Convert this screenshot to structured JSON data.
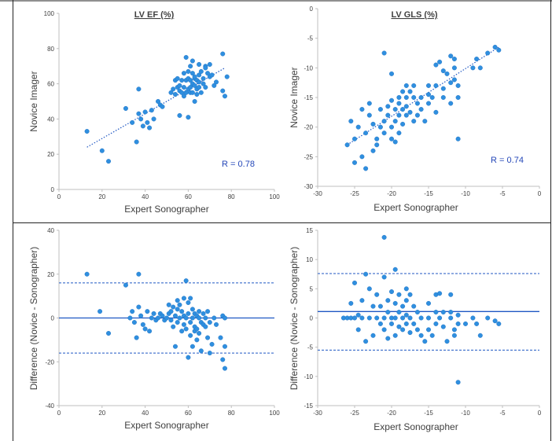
{
  "colors": {
    "point": "#2f8fdf",
    "point_edge": "#1f6fbf",
    "line": "#1f57c3",
    "r_label": "#2447b8",
    "axis": "#bfbfbf",
    "text": "#404040",
    "frame": "#222222"
  },
  "chart_data": [
    {
      "id": "ef-scatter",
      "type": "scatter",
      "title": "LV EF (%)",
      "xlabel": "Expert Sonographer",
      "ylabel": "Novice Imager",
      "xlim": [
        0,
        100
      ],
      "ylim": [
        0,
        100
      ],
      "xticks": [
        0,
        20,
        40,
        60,
        80,
        100
      ],
      "yticks": [
        0,
        20,
        40,
        60,
        80,
        100
      ],
      "annotation": "R = 0.78",
      "trendline": [
        [
          13,
          24
        ],
        [
          77,
          69
        ]
      ],
      "points": [
        [
          13,
          33
        ],
        [
          20,
          22
        ],
        [
          23,
          16
        ],
        [
          31,
          46
        ],
        [
          34,
          38
        ],
        [
          36,
          27
        ],
        [
          37,
          43
        ],
        [
          37,
          57
        ],
        [
          38,
          40
        ],
        [
          39,
          36
        ],
        [
          40,
          44
        ],
        [
          41,
          38
        ],
        [
          42,
          35
        ],
        [
          43,
          45
        ],
        [
          44,
          40
        ],
        [
          46,
          50
        ],
        [
          47,
          48
        ],
        [
          48,
          47
        ],
        [
          52,
          55
        ],
        [
          53,
          57
        ],
        [
          54,
          62
        ],
        [
          54,
          54
        ],
        [
          55,
          58
        ],
        [
          55,
          63
        ],
        [
          56,
          56
        ],
        [
          56,
          42
        ],
        [
          56,
          59
        ],
        [
          57,
          62
        ],
        [
          57,
          55
        ],
        [
          58,
          53
        ],
        [
          58,
          66
        ],
        [
          58,
          58
        ],
        [
          59,
          75
        ],
        [
          59,
          62
        ],
        [
          59,
          55
        ],
        [
          60,
          41
        ],
        [
          60,
          57
        ],
        [
          60,
          63
        ],
        [
          60,
          67
        ],
        [
          61,
          70
        ],
        [
          61,
          58
        ],
        [
          61,
          62
        ],
        [
          61,
          55
        ],
        [
          62,
          60
        ],
        [
          62,
          66
        ],
        [
          62,
          73
        ],
        [
          62,
          55
        ],
        [
          63,
          59
        ],
        [
          63,
          63
        ],
        [
          63,
          64
        ],
        [
          63,
          50
        ],
        [
          64,
          57
        ],
        [
          64,
          62
        ],
        [
          64,
          54
        ],
        [
          65,
          65
        ],
        [
          65,
          58
        ],
        [
          65,
          71
        ],
        [
          65,
          61
        ],
        [
          66,
          67
        ],
        [
          66,
          55
        ],
        [
          67,
          60
        ],
        [
          67,
          63
        ],
        [
          68,
          70
        ],
        [
          68,
          69
        ],
        [
          68,
          58
        ],
        [
          69,
          66
        ],
        [
          70,
          64
        ],
        [
          70,
          71
        ],
        [
          71,
          65
        ],
        [
          72,
          59
        ],
        [
          73,
          61
        ],
        [
          76,
          56
        ],
        [
          76,
          77
        ],
        [
          77,
          53
        ],
        [
          78,
          64
        ]
      ]
    },
    {
      "id": "gls-scatter",
      "type": "scatter",
      "title": "LV GLS (%)",
      "xlabel": "Expert Sonographer",
      "ylabel": "Novice Imager",
      "xlim": [
        -30,
        0
      ],
      "ylim": [
        -30,
        0
      ],
      "xticks": [
        -30,
        -25,
        -20,
        -15,
        -10,
        -5,
        0
      ],
      "yticks": [
        -30,
        -25,
        -20,
        -15,
        -10,
        -5,
        0
      ],
      "annotation": "R = 0.74",
      "trendline": [
        [
          -26,
          -23
        ],
        [
          -5.5,
          -6.5
        ]
      ],
      "points": [
        [
          -26,
          -23
        ],
        [
          -25.5,
          -19
        ],
        [
          -25,
          -26
        ],
        [
          -25,
          -22
        ],
        [
          -24.5,
          -20
        ],
        [
          -24,
          -17
        ],
        [
          -24,
          -25
        ],
        [
          -23.5,
          -27
        ],
        [
          -23.5,
          -21
        ],
        [
          -23,
          -18
        ],
        [
          -23,
          -16
        ],
        [
          -22.5,
          -19.5
        ],
        [
          -22.5,
          -24
        ],
        [
          -22,
          -23
        ],
        [
          -22,
          -22
        ],
        [
          -21.5,
          -20
        ],
        [
          -21.5,
          -17
        ],
        [
          -21,
          -7.5
        ],
        [
          -21,
          -19
        ],
        [
          -21,
          -21
        ],
        [
          -20.5,
          -16.5
        ],
        [
          -20.5,
          -18
        ],
        [
          -20,
          -20
        ],
        [
          -20,
          -22
        ],
        [
          -20,
          -11
        ],
        [
          -20,
          -15.5
        ],
        [
          -19.5,
          -17
        ],
        [
          -19.5,
          -19
        ],
        [
          -19.5,
          -22.5
        ],
        [
          -19,
          -15
        ],
        [
          -19,
          -16
        ],
        [
          -19,
          -18
        ],
        [
          -19,
          -21
        ],
        [
          -18.5,
          -19.5
        ],
        [
          -18.5,
          -14
        ],
        [
          -18.5,
          -17
        ],
        [
          -18,
          -13
        ],
        [
          -18,
          -15
        ],
        [
          -18,
          -18
        ],
        [
          -18,
          -16.5
        ],
        [
          -17.5,
          -17.5
        ],
        [
          -17.5,
          -14
        ],
        [
          -17,
          -13
        ],
        [
          -17,
          -15
        ],
        [
          -17,
          -19
        ],
        [
          -16.5,
          -16
        ],
        [
          -16.5,
          -18
        ],
        [
          -16,
          -15
        ],
        [
          -16,
          -17
        ],
        [
          -15.5,
          -19
        ],
        [
          -15,
          -14.5
        ],
        [
          -15,
          -13
        ],
        [
          -15,
          -16
        ],
        [
          -14.5,
          -15
        ],
        [
          -14,
          -9.5
        ],
        [
          -14,
          -13
        ],
        [
          -14,
          -17.5
        ],
        [
          -13.5,
          -9
        ],
        [
          -13,
          -13.5
        ],
        [
          -13,
          -10.5
        ],
        [
          -13,
          -15
        ],
        [
          -12.5,
          -11
        ],
        [
          -12,
          -8
        ],
        [
          -12,
          -12.5
        ],
        [
          -12,
          -16
        ],
        [
          -11.5,
          -8.5
        ],
        [
          -11.5,
          -10
        ],
        [
          -11.5,
          -12
        ],
        [
          -11,
          -22
        ],
        [
          -11,
          -15
        ],
        [
          -11,
          -13
        ],
        [
          -9,
          -10
        ],
        [
          -8.5,
          -8.5
        ],
        [
          -8,
          -10
        ],
        [
          -7,
          -7.5
        ],
        [
          -6,
          -6.5
        ],
        [
          -5.5,
          -7
        ]
      ]
    },
    {
      "id": "ef-bland-altman",
      "type": "scatter",
      "title": "",
      "xlabel": "Expert Sonographer",
      "ylabel": "Difference (Novice - Sonographer)",
      "xlim": [
        0,
        100
      ],
      "ylim": [
        -40,
        40
      ],
      "xticks": [
        0,
        20,
        40,
        60,
        80,
        100
      ],
      "yticks": [
        -40,
        -20,
        0,
        20,
        40
      ],
      "mean_line": 0,
      "limits": [
        16,
        -16
      ],
      "points": [
        [
          13,
          20
        ],
        [
          19,
          3
        ],
        [
          23,
          -7
        ],
        [
          31,
          15
        ],
        [
          33,
          0
        ],
        [
          34,
          3
        ],
        [
          35,
          -2
        ],
        [
          36,
          -9
        ],
        [
          37,
          20
        ],
        [
          37,
          5
        ],
        [
          38,
          1
        ],
        [
          39,
          -3
        ],
        [
          40,
          -5
        ],
        [
          41,
          3
        ],
        [
          42,
          -6
        ],
        [
          43,
          0
        ],
        [
          44,
          2
        ],
        [
          45,
          -1
        ],
        [
          46,
          0
        ],
        [
          47,
          2
        ],
        [
          48,
          1
        ],
        [
          49,
          -1
        ],
        [
          50,
          0
        ],
        [
          51,
          6
        ],
        [
          51,
          2
        ],
        [
          52,
          -1
        ],
        [
          52,
          3
        ],
        [
          53,
          5
        ],
        [
          53,
          -4
        ],
        [
          54,
          -13
        ],
        [
          54,
          1
        ],
        [
          55,
          8
        ],
        [
          55,
          4
        ],
        [
          55,
          -2
        ],
        [
          56,
          6
        ],
        [
          56,
          0
        ],
        [
          57,
          3
        ],
        [
          57,
          -6
        ],
        [
          58,
          -3
        ],
        [
          58,
          9
        ],
        [
          58,
          1
        ],
        [
          59,
          17
        ],
        [
          59,
          -5
        ],
        [
          59,
          0
        ],
        [
          60,
          -18
        ],
        [
          60,
          2
        ],
        [
          60,
          7
        ],
        [
          61,
          9
        ],
        [
          61,
          -2
        ],
        [
          61,
          -8
        ],
        [
          62,
          4
        ],
        [
          62,
          -13
        ],
        [
          62,
          0
        ],
        [
          63,
          -4
        ],
        [
          63,
          2
        ],
        [
          63,
          -6
        ],
        [
          64,
          -10
        ],
        [
          64,
          1
        ],
        [
          64,
          -5
        ],
        [
          65,
          0
        ],
        [
          65,
          -7
        ],
        [
          65,
          3
        ],
        [
          66,
          -2
        ],
        [
          66,
          -15
        ],
        [
          67,
          -3
        ],
        [
          67,
          2
        ],
        [
          68,
          0
        ],
        [
          68,
          -4
        ],
        [
          69,
          -9
        ],
        [
          69,
          3
        ],
        [
          70,
          -16
        ],
        [
          70,
          -2
        ],
        [
          71,
          -12
        ],
        [
          72,
          0
        ],
        [
          73,
          -3
        ],
        [
          75,
          -9
        ],
        [
          76,
          1
        ],
        [
          76,
          -19
        ],
        [
          77,
          -13
        ],
        [
          77,
          -23
        ],
        [
          77,
          0
        ]
      ]
    },
    {
      "id": "gls-bland-altman",
      "type": "scatter",
      "title": "",
      "xlabel": "Expert Sonographer",
      "ylabel": "Difference (Novice - Sonographer)",
      "xlim": [
        -30,
        0
      ],
      "ylim": [
        -15,
        15
      ],
      "xticks": [
        -30,
        -25,
        -20,
        -15,
        -10,
        -5,
        0
      ],
      "yticks": [
        -15,
        -10,
        -5,
        0,
        5,
        10,
        15
      ],
      "mean_line": 1.1,
      "limits": [
        7.6,
        -5.5
      ],
      "points": [
        [
          -26.5,
          0
        ],
        [
          -26,
          0
        ],
        [
          -25.5,
          0
        ],
        [
          -25.5,
          2.5
        ],
        [
          -25,
          6
        ],
        [
          -25,
          0
        ],
        [
          -24.5,
          0.5
        ],
        [
          -24.5,
          -2
        ],
        [
          -24,
          3
        ],
        [
          -24,
          0
        ],
        [
          -23.5,
          7.5
        ],
        [
          -23.5,
          -4
        ],
        [
          -23,
          5
        ],
        [
          -23,
          0
        ],
        [
          -22.5,
          2
        ],
        [
          -22.5,
          -3
        ],
        [
          -22,
          4
        ],
        [
          -22,
          0
        ],
        [
          -21.5,
          -1
        ],
        [
          -21.5,
          2
        ],
        [
          -21,
          13.8
        ],
        [
          -21,
          7
        ],
        [
          -21,
          0
        ],
        [
          -21,
          -2
        ],
        [
          -20.5,
          3
        ],
        [
          -20.5,
          -3.5
        ],
        [
          -20.5,
          1
        ],
        [
          -20,
          4.5
        ],
        [
          -20,
          0
        ],
        [
          -20,
          -1
        ],
        [
          -19.5,
          8.3
        ],
        [
          -19.5,
          2.5
        ],
        [
          -19.5,
          0
        ],
        [
          -19.5,
          -3
        ],
        [
          -19,
          4
        ],
        [
          -19,
          1
        ],
        [
          -19,
          -1.5
        ],
        [
          -18.5,
          2
        ],
        [
          -18.5,
          0
        ],
        [
          -18.5,
          -2
        ],
        [
          -18,
          5
        ],
        [
          -18,
          3
        ],
        [
          -18,
          0.5
        ],
        [
          -18,
          -1
        ],
        [
          -17.5,
          4
        ],
        [
          -17.5,
          0
        ],
        [
          -17.5,
          -2.5
        ],
        [
          -17,
          2
        ],
        [
          -17,
          -1
        ],
        [
          -16.5,
          1
        ],
        [
          -16.5,
          -2
        ],
        [
          -16,
          0
        ],
        [
          -16,
          -3
        ],
        [
          -15.5,
          -4
        ],
        [
          -15,
          2.5
        ],
        [
          -15,
          0
        ],
        [
          -15,
          -2
        ],
        [
          -14.5,
          -3
        ],
        [
          -14,
          4
        ],
        [
          -14,
          1
        ],
        [
          -14,
          -1
        ],
        [
          -13.5,
          0
        ],
        [
          -13.5,
          4.2
        ],
        [
          -13,
          1
        ],
        [
          -13,
          -1.5
        ],
        [
          -12.5,
          -4
        ],
        [
          -12,
          4
        ],
        [
          -12,
          1
        ],
        [
          -12,
          0
        ],
        [
          -11.5,
          -2
        ],
        [
          -11.5,
          -3
        ],
        [
          -11,
          -11
        ],
        [
          -11,
          0.5
        ],
        [
          -11,
          -1
        ],
        [
          -10,
          -1
        ],
        [
          -9,
          0
        ],
        [
          -8.5,
          -1
        ],
        [
          -8,
          -3
        ],
        [
          -7,
          0
        ],
        [
          -6,
          -0.5
        ],
        [
          -5.5,
          -1
        ]
      ]
    }
  ]
}
